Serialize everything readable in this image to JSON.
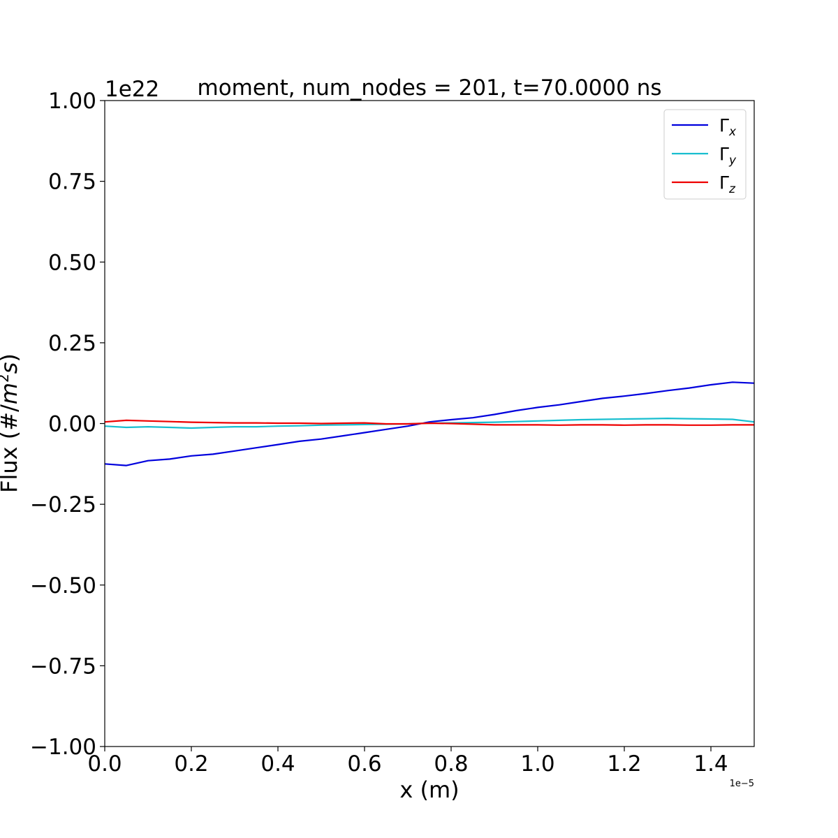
{
  "chart_data": {
    "type": "line",
    "title": "moment, num_nodes = 201, t=70.0000 ns",
    "xlabel": "x (m)",
    "ylabel": "Flux (#/m²s)",
    "ylabel_parts": {
      "base": "Flux (#/",
      "var": "m",
      "sup": "2",
      "var2": "s",
      "end": ")"
    },
    "x_offset_text": "1e−5",
    "y_offset_text": "1e22",
    "xlim": [
      0.0,
      1.5
    ],
    "ylim": [
      -1.0,
      1.0
    ],
    "x_ticks": [
      0.0,
      0.2,
      0.4,
      0.6,
      0.8,
      1.0,
      1.2,
      1.4
    ],
    "x_tick_labels": [
      "0.0",
      "0.2",
      "0.4",
      "0.6",
      "0.8",
      "1.0",
      "1.2",
      "1.4"
    ],
    "y_ticks": [
      -1.0,
      -0.75,
      -0.5,
      -0.25,
      0.0,
      0.25,
      0.5,
      0.75,
      1.0
    ],
    "y_tick_labels": [
      "−1.00",
      "−0.75",
      "−0.50",
      "−0.25",
      "0.00",
      "0.25",
      "0.50",
      "0.75",
      "1.00"
    ],
    "grid": false,
    "legend_position": "top-right",
    "x": [
      0.0,
      0.05,
      0.1,
      0.15,
      0.2,
      0.25,
      0.3,
      0.35,
      0.4,
      0.45,
      0.5,
      0.55,
      0.6,
      0.65,
      0.7,
      0.75,
      0.8,
      0.85,
      0.9,
      0.95,
      1.0,
      1.05,
      1.1,
      1.15,
      1.2,
      1.25,
      1.3,
      1.35,
      1.4,
      1.45,
      1.5
    ],
    "series": [
      {
        "name": "Γx",
        "label_base": "Γ",
        "label_sub": "x",
        "color": "#0000dd",
        "values": [
          -0.125,
          -0.13,
          -0.115,
          -0.11,
          -0.1,
          -0.095,
          -0.085,
          -0.075,
          -0.065,
          -0.055,
          -0.048,
          -0.038,
          -0.028,
          -0.018,
          -0.008,
          0.005,
          0.012,
          0.018,
          0.028,
          0.04,
          0.05,
          0.058,
          0.068,
          0.078,
          0.085,
          0.093,
          0.102,
          0.11,
          0.12,
          0.128,
          0.125
        ]
      },
      {
        "name": "Γy",
        "label_base": "Γ",
        "label_sub": "y",
        "color": "#17becf",
        "values": [
          -0.008,
          -0.012,
          -0.01,
          -0.012,
          -0.014,
          -0.012,
          -0.01,
          -0.01,
          -0.008,
          -0.007,
          -0.005,
          -0.004,
          -0.003,
          -0.002,
          -0.001,
          0.001,
          0.002,
          0.003,
          0.004,
          0.006,
          0.008,
          0.01,
          0.012,
          0.013,
          0.014,
          0.015,
          0.016,
          0.015,
          0.014,
          0.013,
          0.005
        ]
      },
      {
        "name": "Γz",
        "label_base": "Γ",
        "label_sub": "z",
        "color": "#ee0000",
        "values": [
          0.005,
          0.01,
          0.008,
          0.006,
          0.004,
          0.003,
          0.002,
          0.002,
          0.001,
          0.001,
          0.0,
          0.001,
          0.002,
          -0.001,
          -0.001,
          0.001,
          0.0,
          -0.002,
          -0.004,
          -0.004,
          -0.004,
          -0.005,
          -0.004,
          -0.004,
          -0.005,
          -0.004,
          -0.004,
          -0.005,
          -0.005,
          -0.004,
          -0.004
        ]
      }
    ]
  }
}
